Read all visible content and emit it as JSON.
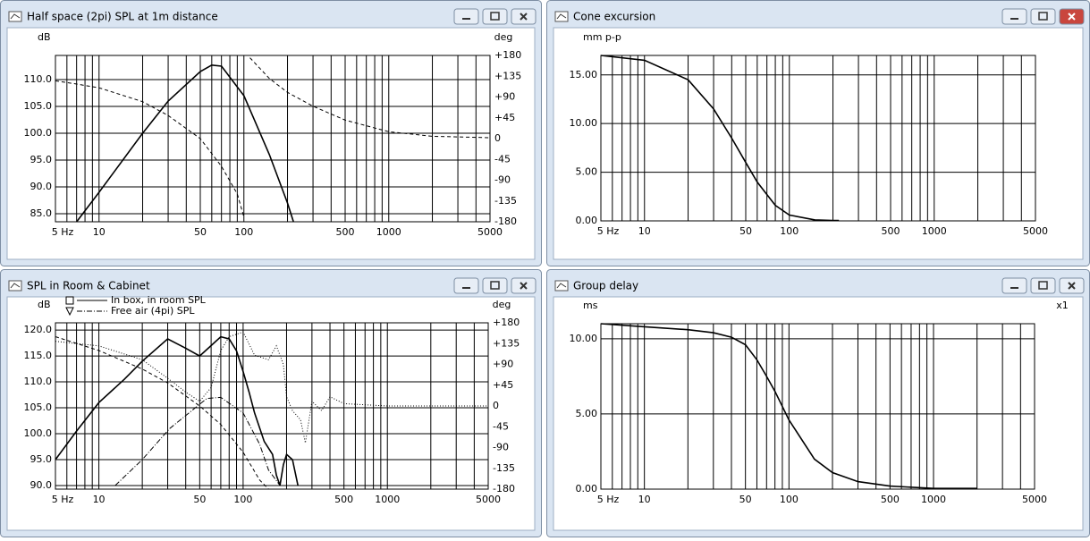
{
  "chart_data": [
    {
      "type": "line",
      "title": "Half space (2pi) SPL at 1m distance",
      "ylabel": "dB",
      "y2label": "deg",
      "xscale": "log",
      "xlim": [
        5,
        5000
      ],
      "xticks": [
        {
          "value": 5,
          "label": "5 Hz"
        },
        10,
        50,
        100,
        500,
        1000,
        5000
      ],
      "xgrid": [
        5,
        6,
        7,
        8,
        9,
        10,
        20,
        30,
        40,
        50,
        60,
        70,
        80,
        90,
        100,
        200,
        300,
        400,
        500,
        600,
        700,
        800,
        900,
        1000,
        2000,
        3000,
        4000,
        5000
      ],
      "ylim": [
        83.5,
        114.5
      ],
      "yticks": [
        {
          "value": 85,
          "label": "85.0"
        },
        {
          "value": 90,
          "label": "90.0"
        },
        {
          "value": 95,
          "label": "95.0"
        },
        {
          "value": 100,
          "label": "100.0"
        },
        {
          "value": 105,
          "label": "105.0"
        },
        {
          "value": 110,
          "label": "110.0"
        }
      ],
      "y2lim": [
        -180,
        180
      ],
      "y2ticks": [
        {
          "value": 180,
          "label": "+180"
        },
        {
          "value": 135,
          "label": "+135"
        },
        {
          "value": 90,
          "label": "+90"
        },
        {
          "value": 45,
          "label": "+45"
        },
        0,
        -45,
        -90,
        -135,
        -180
      ],
      "grid": true,
      "series": [
        {
          "color": "#000000",
          "style": "solid",
          "x": [
            7,
            10,
            20,
            30,
            50,
            60,
            70,
            100,
            150,
            200,
            220
          ],
          "values": [
            83.5,
            89,
            100,
            106,
            111.5,
            112.7,
            112.5,
            107,
            96,
            87,
            83.5
          ]
        },
        {
          "color": "#000000",
          "style": "dashed",
          "axis": "y2",
          "x": [
            5,
            7,
            10,
            20,
            30,
            50,
            70,
            90,
            100,
            105,
            110,
            150,
            200,
            300,
            500,
            1000,
            2000,
            5000
          ],
          "values": [
            125,
            118,
            110,
            80,
            50,
            0,
            -60,
            -120,
            -170,
            null,
            175,
            130,
            100,
            70,
            40,
            15,
            5,
            2
          ]
        }
      ]
    },
    {
      "type": "line",
      "title": "Cone excursion",
      "ylabel": "mm p-p",
      "xscale": "log",
      "xlim": [
        5,
        5000
      ],
      "xticks": [
        {
          "value": 5,
          "label": "5 Hz"
        },
        10,
        50,
        100,
        500,
        1000,
        5000
      ],
      "xgrid": [
        5,
        6,
        7,
        8,
        9,
        10,
        20,
        30,
        40,
        50,
        60,
        70,
        80,
        90,
        100,
        200,
        300,
        400,
        500,
        600,
        700,
        800,
        900,
        1000,
        2000,
        3000,
        4000,
        5000
      ],
      "ylim": [
        0,
        17
      ],
      "yticks": [
        {
          "value": 0,
          "label": "0.00"
        },
        {
          "value": 5,
          "label": "5.00"
        },
        {
          "value": 10,
          "label": "10.00"
        },
        {
          "value": 15,
          "label": "15.00"
        }
      ],
      "grid": true,
      "series": [
        {
          "color": "#000000",
          "style": "solid",
          "x": [
            5,
            10,
            20,
            30,
            40,
            50,
            60,
            70,
            80,
            100,
            150,
            200,
            220
          ],
          "values": [
            17,
            16.5,
            14.5,
            11.5,
            8.5,
            6,
            4,
            2.7,
            1.6,
            0.6,
            0.1,
            0.05,
            0.05
          ]
        }
      ]
    },
    {
      "type": "line",
      "title": "SPL in Room & Cabinet",
      "ylabel": "dB",
      "y2label": "deg",
      "xscale": "log",
      "xlim": [
        5,
        5000
      ],
      "xticks": [
        {
          "value": 5,
          "label": "5 Hz"
        },
        10,
        50,
        100,
        500,
        1000,
        5000
      ],
      "xgrid": [
        5,
        6,
        7,
        8,
        9,
        10,
        20,
        30,
        40,
        50,
        60,
        70,
        80,
        90,
        100,
        200,
        300,
        400,
        500,
        600,
        700,
        800,
        900,
        1000,
        2000,
        3000,
        4000,
        5000
      ],
      "ylim": [
        89.3,
        121.4
      ],
      "yticks": [
        {
          "value": 90,
          "label": "90.0"
        },
        {
          "value": 95,
          "label": "95.0"
        },
        {
          "value": 100,
          "label": "100.0"
        },
        {
          "value": 105,
          "label": "105.0"
        },
        {
          "value": 110,
          "label": "110.0"
        },
        {
          "value": 115,
          "label": "115.0"
        },
        {
          "value": 120,
          "label": "120.0"
        }
      ],
      "y2lim": [
        -180,
        180
      ],
      "y2ticks": [
        {
          "value": 180,
          "label": "+180"
        },
        {
          "value": 135,
          "label": "+135"
        },
        {
          "value": 90,
          "label": "+90"
        },
        {
          "value": 45,
          "label": "+45"
        },
        0,
        -45,
        -90,
        -135,
        -180
      ],
      "grid": true,
      "series": [
        {
          "name": "In box, in room SPL",
          "marker": "square",
          "color": "#000000",
          "style": "solid",
          "x": [
            5,
            7,
            10,
            15,
            20,
            30,
            40,
            50,
            60,
            70,
            80,
            90,
            100,
            110,
            120,
            140,
            160,
            170,
            180,
            190,
            200,
            220,
            240
          ],
          "values": [
            95,
            100.5,
            106,
            110.5,
            114,
            118.3,
            116.5,
            115,
            117,
            118.7,
            118.3,
            116,
            112,
            108,
            104,
            98.5,
            96,
            92,
            90,
            94,
            96,
            95,
            90
          ]
        },
        {
          "name": "Free air (4pi) SPL",
          "marker": "triangle",
          "color": "#000000",
          "style": "dashdot",
          "x": [
            13,
            20,
            31,
            56,
            70,
            100,
            130,
            150,
            180
          ],
          "values": [
            90,
            95,
            101,
            106.8,
            107,
            104,
            98,
            93,
            90
          ]
        },
        {
          "color": "#000000",
          "style": "dotted",
          "axis": "y2",
          "x": [
            5,
            10,
            20,
            30,
            40,
            50,
            60,
            70,
            80,
            100,
            120,
            150,
            170,
            190,
            200,
            220,
            250,
            270,
            300,
            350,
            400,
            500,
            1000,
            5000
          ],
          "values": [
            140,
            130,
            100,
            60,
            30,
            10,
            40,
            120,
            150,
            160,
            110,
            100,
            130,
            90,
            20,
            -10,
            -30,
            -80,
            10,
            -10,
            20,
            5,
            0,
            0
          ]
        },
        {
          "color": "#000000",
          "style": "dashed",
          "axis": "y2",
          "x": [
            5,
            10,
            20,
            30,
            50,
            70,
            100,
            130,
            150
          ],
          "values": [
            150,
            120,
            80,
            50,
            0,
            -40,
            -100,
            -160,
            -180
          ]
        }
      ]
    },
    {
      "type": "line",
      "title": "Group delay",
      "ylabel": "ms",
      "y2label": "x1",
      "xscale": "log",
      "xlim": [
        5,
        5000
      ],
      "xticks": [
        {
          "value": 5,
          "label": "5 Hz"
        },
        10,
        50,
        100,
        500,
        1000,
        5000
      ],
      "xgrid": [
        5,
        6,
        7,
        8,
        9,
        10,
        20,
        30,
        40,
        50,
        60,
        70,
        80,
        90,
        100,
        200,
        300,
        400,
        500,
        600,
        700,
        800,
        900,
        1000,
        2000,
        3000,
        4000,
        5000
      ],
      "ylim": [
        0,
        11
      ],
      "yticks": [
        {
          "value": 0,
          "label": "0.00"
        },
        {
          "value": 5,
          "label": "5.00"
        },
        {
          "value": 10,
          "label": "10.00"
        }
      ],
      "grid": true,
      "series": [
        {
          "color": "#000000",
          "style": "solid",
          "x": [
            5,
            10,
            20,
            30,
            40,
            50,
            60,
            70,
            80,
            100,
            150,
            200,
            300,
            500,
            1000,
            2000
          ],
          "values": [
            11,
            10.8,
            10.6,
            10.4,
            10.1,
            9.6,
            8.6,
            7.5,
            6.5,
            4.6,
            2,
            1.1,
            0.5,
            0.2,
            0.05,
            0.05
          ]
        }
      ]
    }
  ]
}
